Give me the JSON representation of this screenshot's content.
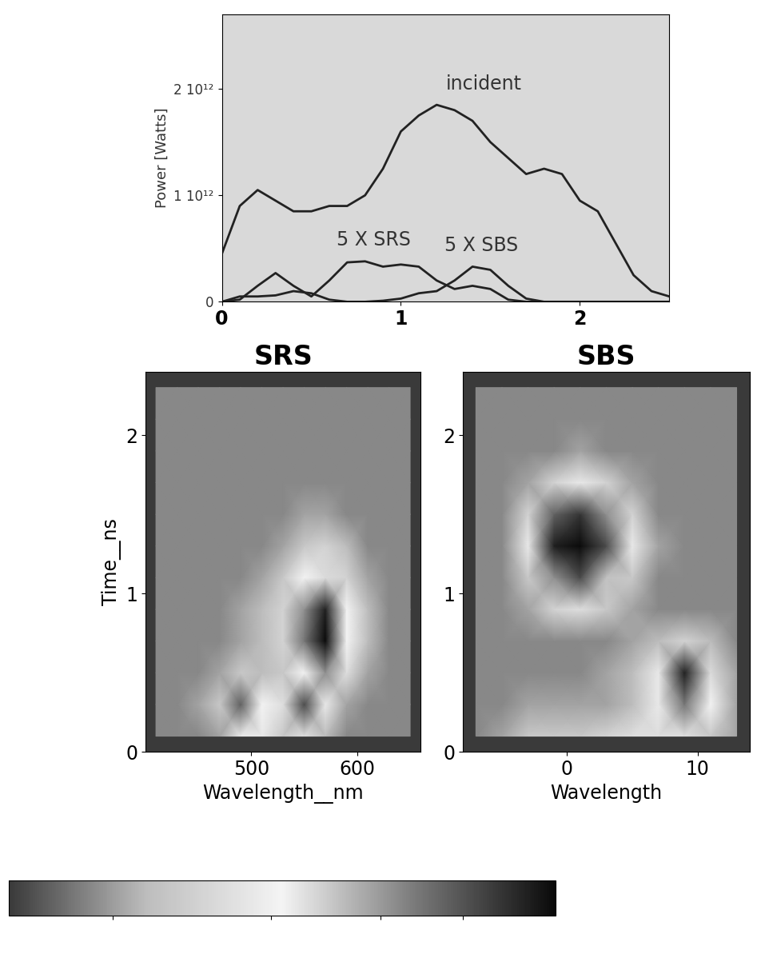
{
  "chart_data": [
    {
      "type": "line",
      "ylabel": "Power [Watts]",
      "x": [
        0,
        0.1,
        0.2,
        0.3,
        0.4,
        0.5,
        0.6,
        0.7,
        0.8,
        0.9,
        1.0,
        1.1,
        1.2,
        1.3,
        1.4,
        1.5,
        1.6,
        1.7,
        1.8,
        1.9,
        2.0,
        2.1,
        2.2,
        2.3,
        2.4,
        2.5
      ],
      "series": [
        {
          "name": "incident",
          "color": "#222222",
          "values": [
            450000000000.0,
            900000000000.0,
            1050000000000.0,
            950000000000.0,
            850000000000.0,
            850000000000.0,
            900000000000.0,
            900000000000.0,
            1000000000000.0,
            1250000000000.0,
            1600000000000.0,
            1750000000000.0,
            1850000000000.0,
            1800000000000.0,
            1700000000000.0,
            1500000000000.0,
            1350000000000.0,
            1200000000000.0,
            1250000000000.0,
            1200000000000.0,
            950000000000.0,
            850000000000.0,
            550000000000.0,
            250000000000.0,
            100000000000.0,
            50000000000.0
          ]
        },
        {
          "name": "5 X SRS",
          "color": "#222222",
          "values": [
            0,
            20000000000.0,
            150000000000.0,
            270000000000.0,
            150000000000.0,
            50000000000.0,
            200000000000.0,
            370000000000.0,
            380000000000.0,
            330000000000.0,
            350000000000.0,
            330000000000.0,
            200000000000.0,
            120000000000.0,
            150000000000.0,
            120000000000.0,
            20000000000.0,
            0,
            0,
            0,
            0,
            0,
            0,
            0,
            0,
            0
          ]
        },
        {
          "name": "5 X SBS",
          "color": "#222222",
          "values": [
            0,
            50000000000.0,
            50000000000.0,
            60000000000.0,
            100000000000.0,
            80000000000.0,
            20000000000.0,
            0,
            0,
            10000000000.0,
            30000000000.0,
            80000000000.0,
            100000000000.0,
            200000000000.0,
            330000000000.0,
            300000000000.0,
            150000000000.0,
            30000000000.0,
            0,
            0,
            0,
            0,
            0,
            0,
            0,
            0
          ]
        }
      ],
      "xlim": [
        0,
        2.5
      ],
      "xticks": [
        0,
        1,
        2
      ],
      "ylim": [
        0,
        2700000000000.0
      ],
      "yticks": [
        0,
        {
          "value": 1000000000000.0,
          "label": "1 10¹²"
        },
        {
          "value": 2000000000000.0,
          "label": "2 10¹²"
        }
      ]
    },
    {
      "type": "heatmap",
      "title": "SRS",
      "xlabel": "Wavelength__nm",
      "ylabel": "Time__ns",
      "x": [
        410,
        430,
        450,
        470,
        490,
        510,
        530,
        550,
        570,
        590,
        610,
        630,
        650
      ],
      "y": [
        0.1,
        0.3,
        0.5,
        0.7,
        0.9,
        1.1,
        1.3,
        1.5,
        1.7,
        1.9,
        2.1,
        2.3
      ],
      "cells": [
        [
          0.15,
          0.15,
          0.15,
          0.2,
          0.45,
          0.45,
          0.3,
          0.4,
          0.25,
          0.15,
          0.15,
          0.15,
          0.15
        ],
        [
          0.15,
          0.15,
          0.2,
          0.3,
          0.8,
          0.5,
          0.4,
          0.85,
          0.45,
          0.2,
          0.15,
          0.15,
          0.15
        ],
        [
          0.15,
          0.15,
          0.15,
          0.2,
          0.3,
          0.25,
          0.3,
          0.5,
          0.7,
          0.4,
          0.2,
          0.15,
          0.15
        ],
        [
          0.15,
          0.15,
          0.15,
          0.15,
          0.2,
          0.25,
          0.35,
          0.75,
          1.0,
          0.5,
          0.25,
          0.15,
          0.15
        ],
        [
          0.15,
          0.15,
          0.15,
          0.15,
          0.2,
          0.25,
          0.35,
          0.7,
          0.95,
          0.5,
          0.25,
          0.15,
          0.15
        ],
        [
          0.15,
          0.15,
          0.15,
          0.15,
          0.15,
          0.2,
          0.3,
          0.5,
          0.55,
          0.35,
          0.2,
          0.15,
          0.15
        ],
        [
          0.15,
          0.15,
          0.15,
          0.15,
          0.15,
          0.15,
          0.2,
          0.3,
          0.35,
          0.25,
          0.15,
          0.15,
          0.15
        ],
        [
          0.15,
          0.15,
          0.15,
          0.15,
          0.15,
          0.15,
          0.15,
          0.2,
          0.2,
          0.15,
          0.15,
          0.15,
          0.15
        ],
        [
          0.15,
          0.15,
          0.15,
          0.15,
          0.15,
          0.15,
          0.15,
          0.15,
          0.15,
          0.15,
          0.15,
          0.15,
          0.15
        ],
        [
          0.15,
          0.15,
          0.15,
          0.15,
          0.15,
          0.15,
          0.15,
          0.15,
          0.15,
          0.15,
          0.15,
          0.15,
          0.15
        ],
        [
          0.15,
          0.15,
          0.15,
          0.15,
          0.15,
          0.15,
          0.15,
          0.15,
          0.15,
          0.15,
          0.15,
          0.15,
          0.15
        ],
        [
          0.15,
          0.15,
          0.15,
          0.15,
          0.15,
          0.15,
          0.15,
          0.15,
          0.15,
          0.15,
          0.15,
          0.15,
          0.15
        ]
      ],
      "xlim": [
        400,
        660
      ],
      "xticks": [
        500,
        600
      ],
      "ylim": [
        0,
        2.4
      ],
      "yticks": [
        0,
        1,
        2
      ]
    },
    {
      "type": "heatmap",
      "title": "SBS",
      "xlabel": "Wavelength",
      "x": [
        -7,
        -5,
        -3,
        -1,
        1,
        3,
        5,
        7,
        9,
        11,
        13
      ],
      "y": [
        0.1,
        0.3,
        0.5,
        0.7,
        0.9,
        1.1,
        1.3,
        1.5,
        1.7,
        1.9,
        2.1,
        2.3
      ],
      "cells": [
        [
          0.15,
          0.2,
          0.3,
          0.3,
          0.3,
          0.35,
          0.4,
          0.4,
          0.4,
          0.3,
          0.2
        ],
        [
          0.15,
          0.15,
          0.2,
          0.2,
          0.2,
          0.2,
          0.25,
          0.45,
          0.75,
          0.5,
          0.2
        ],
        [
          0.15,
          0.15,
          0.15,
          0.15,
          0.15,
          0.2,
          0.25,
          0.45,
          0.95,
          0.55,
          0.2
        ],
        [
          0.15,
          0.15,
          0.15,
          0.15,
          0.15,
          0.15,
          0.2,
          0.25,
          0.35,
          0.25,
          0.15
        ],
        [
          0.15,
          0.15,
          0.2,
          0.35,
          0.4,
          0.3,
          0.2,
          0.15,
          0.15,
          0.15,
          0.15
        ],
        [
          0.15,
          0.15,
          0.3,
          0.7,
          0.85,
          0.6,
          0.3,
          0.15,
          0.15,
          0.15,
          0.15
        ],
        [
          0.15,
          0.15,
          0.45,
          0.95,
          1.0,
          0.85,
          0.45,
          0.2,
          0.15,
          0.15,
          0.15
        ],
        [
          0.15,
          0.15,
          0.35,
          0.8,
          0.9,
          0.7,
          0.35,
          0.15,
          0.15,
          0.15,
          0.15
        ],
        [
          0.15,
          0.15,
          0.2,
          0.35,
          0.45,
          0.35,
          0.2,
          0.15,
          0.15,
          0.15,
          0.15
        ],
        [
          0.15,
          0.15,
          0.15,
          0.15,
          0.2,
          0.15,
          0.15,
          0.15,
          0.15,
          0.15,
          0.15
        ],
        [
          0.15,
          0.15,
          0.15,
          0.15,
          0.15,
          0.15,
          0.15,
          0.15,
          0.15,
          0.15,
          0.15
        ],
        [
          0.15,
          0.15,
          0.15,
          0.15,
          0.15,
          0.15,
          0.15,
          0.15,
          0.15,
          0.15,
          0.15
        ]
      ],
      "xlim": [
        -8,
        14
      ],
      "xticks": [
        0,
        10
      ],
      "ylim": [
        0,
        2.4
      ],
      "yticks": [
        0,
        1,
        2
      ]
    },
    {
      "type": "colorbar",
      "range": [
        0,
        1
      ],
      "ticks": [
        0.19,
        0.48,
        0.68,
        0.83
      ],
      "tick_labels": false
    }
  ]
}
